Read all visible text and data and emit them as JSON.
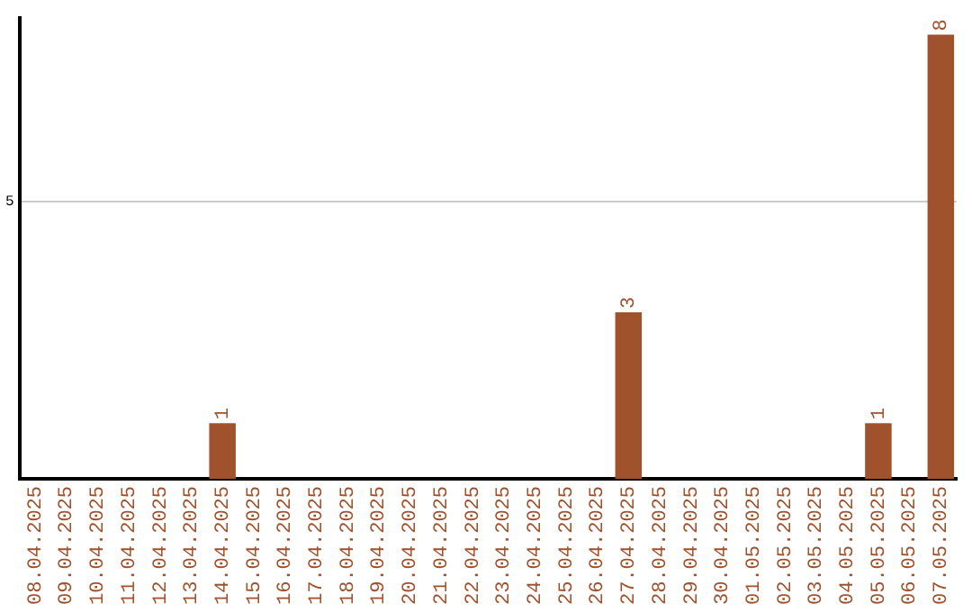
{
  "chart_data": {
    "type": "bar",
    "categories": [
      "08.04.2025",
      "09.04.2025",
      "10.04.2025",
      "11.04.2025",
      "12.04.2025",
      "13.04.2025",
      "14.04.2025",
      "15.04.2025",
      "16.04.2025",
      "17.04.2025",
      "18.04.2025",
      "19.04.2025",
      "20.04.2025",
      "21.04.2025",
      "22.04.2025",
      "23.04.2025",
      "24.04.2025",
      "25.04.2025",
      "26.04.2025",
      "27.04.2025",
      "28.04.2025",
      "29.04.2025",
      "30.04.2025",
      "01.05.2025",
      "02.05.2025",
      "03.05.2025",
      "04.05.2025",
      "05.05.2025",
      "06.05.2025",
      "07.05.2025"
    ],
    "values": [
      0,
      0,
      0,
      0,
      0,
      0,
      1,
      0,
      0,
      0,
      0,
      0,
      0,
      0,
      0,
      0,
      0,
      0,
      0,
      3,
      0,
      0,
      0,
      0,
      0,
      0,
      0,
      1,
      0,
      8
    ],
    "value_labels": [
      null,
      null,
      null,
      null,
      null,
      null,
      "1",
      null,
      null,
      null,
      null,
      null,
      null,
      null,
      null,
      null,
      null,
      null,
      null,
      "3",
      null,
      null,
      null,
      null,
      null,
      null,
      null,
      "1",
      null,
      "8"
    ],
    "color": "#a0522d",
    "ylim": [
      0,
      8.3
    ],
    "yticks": [
      5
    ],
    "grid": "y",
    "legend": false
  }
}
